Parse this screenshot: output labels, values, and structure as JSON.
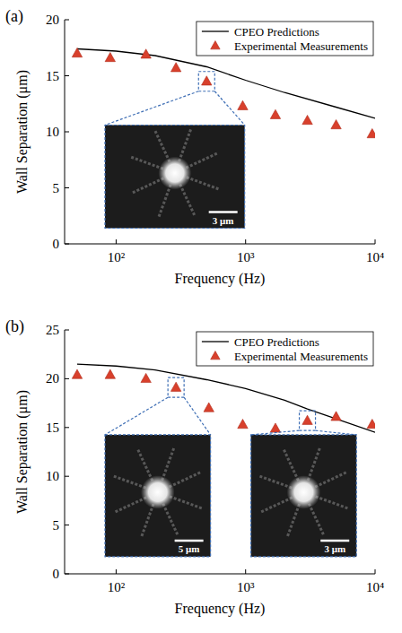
{
  "chart_data": [
    {
      "type": "line",
      "panel_label": "(a)",
      "x_label": "Frequency (Hz)",
      "y_label": "Wall Separation (μm)",
      "log": "x",
      "xlim": [
        40,
        10000
      ],
      "xticks": [
        {
          "value": 100,
          "label": "10²"
        },
        {
          "value": 1000,
          "label": "10³"
        },
        {
          "value": 10000,
          "label": "10⁴"
        }
      ],
      "ylim": [
        0,
        20
      ],
      "yticks": [
        0,
        5,
        10,
        15,
        20
      ],
      "legend": "upper right",
      "series": [
        {
          "name": "CPEO Predictions",
          "type": "line",
          "color": "#000000",
          "line_style": "solid",
          "x": [
            50,
            100,
            200,
            500,
            1000,
            2000,
            5000,
            10000
          ],
          "values": [
            17.4,
            17.2,
            16.8,
            15.8,
            14.6,
            13.5,
            12.2,
            11.2
          ]
        },
        {
          "name": "Experimental Measurements",
          "type": "scatter",
          "color": "#d8402c",
          "marker": "triangle",
          "x": [
            50,
            90,
            170,
            290,
            500,
            950,
            1700,
            3000,
            5000,
            9500
          ],
          "values": [
            17.0,
            16.6,
            16.9,
            15.7,
            14.5,
            12.3,
            11.5,
            11.0,
            10.6,
            9.8
          ]
        }
      ],
      "insets": [
        {
          "x": 500,
          "y": 14.5,
          "scale_label": "3 μm"
        }
      ]
    },
    {
      "type": "line",
      "panel_label": "(b)",
      "x_label": "Frequency (Hz)",
      "y_label": "Wall Separation (μm)",
      "log": "x",
      "xlim": [
        40,
        10000
      ],
      "xticks": [
        {
          "value": 100,
          "label": "10²"
        },
        {
          "value": 1000,
          "label": "10³"
        },
        {
          "value": 10000,
          "label": "10⁴"
        }
      ],
      "ylim": [
        0,
        25
      ],
      "yticks": [
        0,
        5,
        10,
        15,
        20,
        25
      ],
      "legend": "upper right",
      "series": [
        {
          "name": "CPEO Predictions",
          "type": "line",
          "color": "#000000",
          "line_style": "solid",
          "x": [
            50,
            100,
            200,
            500,
            1000,
            2000,
            3000,
            5000,
            10000
          ],
          "values": [
            21.5,
            21.3,
            20.9,
            19.9,
            19.0,
            17.8,
            16.9,
            15.9,
            14.5
          ]
        },
        {
          "name": "Experimental Measurements",
          "type": "scatter",
          "color": "#d8402c",
          "marker": "triangle",
          "x": [
            50,
            90,
            170,
            290,
            520,
            950,
            1700,
            3000,
            5000,
            9500
          ],
          "values": [
            20.4,
            20.4,
            20.0,
            19.1,
            17.0,
            15.3,
            14.9,
            15.7,
            16.1,
            15.3
          ]
        }
      ],
      "insets": [
        {
          "x": 290,
          "y": 19.1,
          "scale_label": "5 μm"
        },
        {
          "x": 3000,
          "y": 15.7,
          "scale_label": "3 μm"
        }
      ]
    }
  ]
}
